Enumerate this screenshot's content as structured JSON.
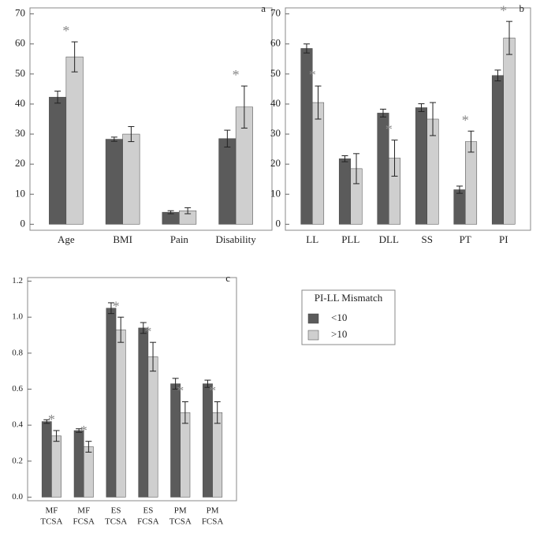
{
  "chart_data": [
    {
      "type": "bar",
      "panel_label": "a",
      "categories": [
        [
          "Age"
        ],
        [
          "BMI"
        ],
        [
          "Pain"
        ],
        [
          "Disability"
        ]
      ],
      "series": [
        {
          "color": "#5b5b5b",
          "values": [
            42.3,
            28.3,
            4,
            28.5
          ],
          "errors": [
            2,
            0.7,
            0.5,
            2.8
          ]
        },
        {
          "color": "#cfcfcf",
          "values": [
            55.7,
            30,
            4.5,
            39
          ],
          "errors": [
            5,
            2.5,
            1,
            7
          ]
        }
      ],
      "significant": [
        true,
        false,
        false,
        true
      ],
      "marker_text": "*",
      "ylim": [
        -2,
        72
      ],
      "yticks": [
        0,
        10,
        20,
        30,
        40,
        50,
        60,
        70
      ]
    },
    {
      "type": "bar",
      "panel_label": "b",
      "categories": [
        [
          "LL"
        ],
        [
          "PLL"
        ],
        [
          "DLL"
        ],
        [
          "SS"
        ],
        [
          "PT"
        ],
        [
          "PI"
        ]
      ],
      "series": [
        {
          "color": "#5b5b5b",
          "values": [
            58.5,
            21.8,
            37,
            38.8,
            11.5,
            49.5
          ],
          "errors": [
            1.5,
            1,
            1.3,
            1.3,
            1.2,
            1.8
          ]
        },
        {
          "color": "#cfcfcf",
          "values": [
            40.5,
            18.5,
            22,
            35,
            27.5,
            62
          ],
          "errors": [
            5.5,
            5,
            6,
            5.5,
            3.5,
            5.5
          ]
        }
      ],
      "significant": [
        true,
        false,
        true,
        false,
        true,
        true
      ],
      "marker_text": "*",
      "ylim": [
        -2,
        72
      ],
      "yticks": [
        0,
        10,
        20,
        30,
        40,
        50,
        60,
        70
      ]
    },
    {
      "type": "bar",
      "panel_label": "c",
      "categories": [
        [
          "MF",
          "TCSA"
        ],
        [
          "MF",
          "FCSA"
        ],
        [
          "ES",
          "TCSA"
        ],
        [
          "ES",
          "FCSA"
        ],
        [
          "PM",
          "TCSA"
        ],
        [
          "PM",
          "FCSA"
        ]
      ],
      "series": [
        {
          "color": "#5b5b5b",
          "values": [
            0.42,
            0.37,
            1.05,
            0.94,
            0.63,
            0.63
          ],
          "errors": [
            0.01,
            0.01,
            0.03,
            0.03,
            0.03,
            0.02
          ]
        },
        {
          "color": "#cfcfcf",
          "values": [
            0.34,
            0.28,
            0.93,
            0.78,
            0.47,
            0.47
          ],
          "errors": [
            0.03,
            0.03,
            0.07,
            0.08,
            0.06,
            0.06
          ]
        }
      ],
      "significant": [
        true,
        true,
        true,
        true,
        true,
        true
      ],
      "marker_text": "*",
      "ylim": [
        -0.02,
        1.22
      ],
      "yticks": [
        {
          "value": 0,
          "label": "0.0"
        },
        {
          "value": 0.2,
          "label": "0.2"
        },
        {
          "value": 0.4,
          "label": "0.4"
        },
        {
          "value": 0.6,
          "label": "0.6"
        },
        {
          "value": 0.8,
          "label": "0.8"
        },
        {
          "value": 1,
          "label": "1.0"
        },
        {
          "value": 1.2,
          "label": "1.2"
        }
      ]
    }
  ],
  "legend": {
    "title": "PI-LL Mismatch",
    "entries": [
      {
        "name": "<10",
        "color": "#5b5b5b"
      },
      {
        "name": ">10",
        "color": "#cfcfcf"
      }
    ]
  }
}
